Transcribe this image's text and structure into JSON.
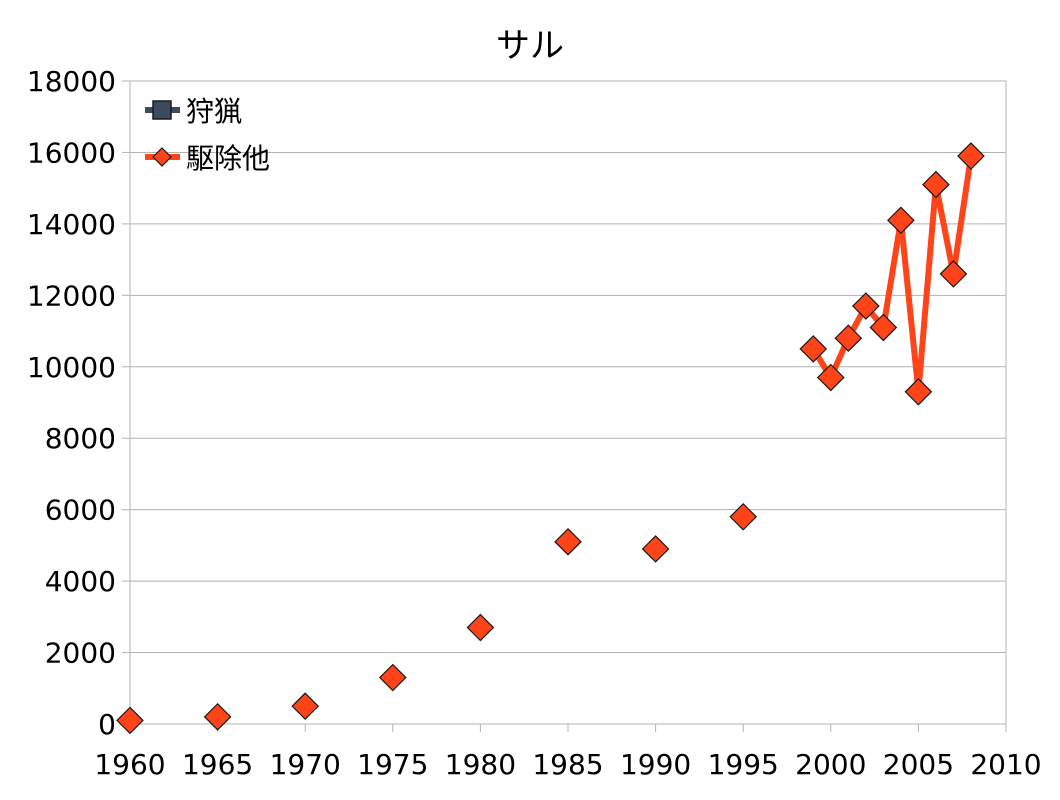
{
  "chart_data": {
    "type": "line",
    "title": "サル",
    "xlabel": "",
    "ylabel": "",
    "xlim": [
      1960,
      2010
    ],
    "ylim": [
      0,
      18000
    ],
    "x_ticks": [
      1960,
      1965,
      1970,
      1975,
      1980,
      1985,
      1990,
      1995,
      2000,
      2005,
      2010
    ],
    "y_ticks": [
      0,
      2000,
      4000,
      6000,
      8000,
      10000,
      12000,
      14000,
      16000,
      18000
    ],
    "grid": "horizontal",
    "legend_position": "top-left",
    "series": [
      {
        "name": "狩猟",
        "color": "#3b4a5e",
        "marker": "square",
        "x": [],
        "values": []
      },
      {
        "name": "駆除他",
        "color": "#ff4419",
        "marker": "diamond",
        "x": [
          1960,
          1965,
          1970,
          1975,
          1980,
          1985,
          1990,
          1995,
          1999,
          2000,
          2001,
          2002,
          2003,
          2004,
          2005,
          2006,
          2007,
          2008
        ],
        "values": [
          100,
          200,
          500,
          1300,
          2700,
          5100,
          4900,
          5800,
          10500,
          9700,
          10800,
          11700,
          11100,
          14100,
          9300,
          15100,
          12600,
          15900
        ],
        "line_from_x": 1999
      }
    ]
  }
}
